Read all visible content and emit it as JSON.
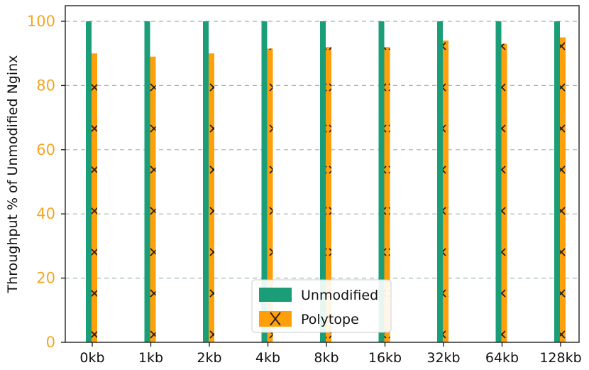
{
  "chart_data": {
    "type": "bar",
    "title": "",
    "xlabel": "",
    "ylabel": "Throughput % of Unmodified Nginx",
    "categories": [
      "0kb",
      "1kb",
      "2kb",
      "4kb",
      "8kb",
      "16kb",
      "32kb",
      "64kb",
      "128kb"
    ],
    "series": [
      {
        "name": "Unmodified",
        "values": [
          100,
          100,
          100,
          100,
          100,
          100,
          100,
          100,
          100
        ],
        "color": "#1b9e77"
      },
      {
        "name": "Polytope",
        "values": [
          90,
          89,
          90,
          91.5,
          92,
          92,
          94,
          93,
          95
        ],
        "color": "#ff9f0a",
        "hatch": "x"
      }
    ],
    "ylim": [
      0,
      100
    ],
    "yticks": [
      0,
      20,
      40,
      60,
      80,
      100
    ],
    "grid": true,
    "legend": {
      "position": "bottom-center"
    },
    "colors": {
      "tick_y": "#f5a623",
      "grid": "#9fb7b0"
    }
  }
}
